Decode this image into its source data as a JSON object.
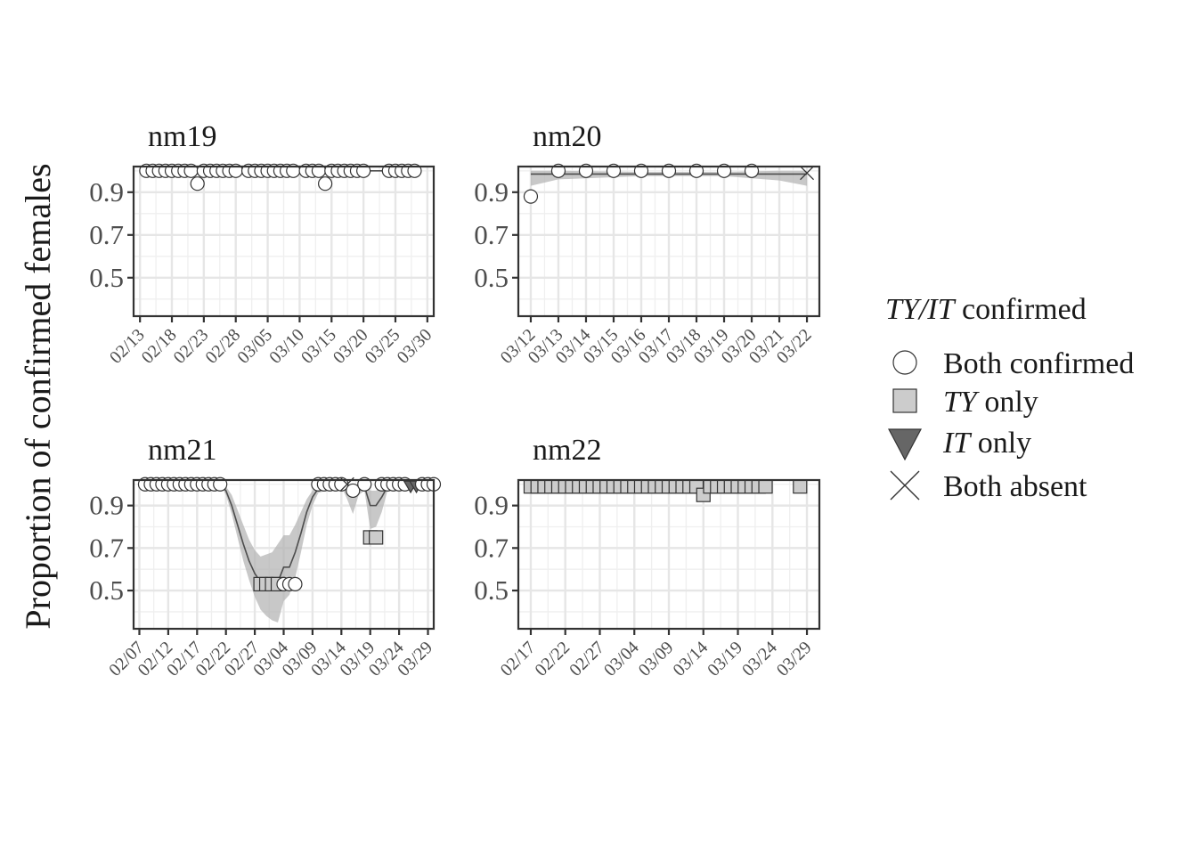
{
  "y_axis_label": "Proportion of confirmed females",
  "legend": {
    "title_italic": "TY/IT",
    "title_rest": " confirmed",
    "items": [
      {
        "key": "both",
        "italic": "",
        "rest": "Both confirmed",
        "shape": "circle",
        "fill": "#ffffff"
      },
      {
        "key": "ty",
        "italic": "TY",
        "rest": " only",
        "shape": "square",
        "fill": "#cccccc"
      },
      {
        "key": "it",
        "italic": "IT",
        "rest": " only",
        "shape": "triangle-down",
        "fill": "#666666"
      },
      {
        "key": "none",
        "italic": "",
        "rest": "Both absent",
        "shape": "cross",
        "fill": "none"
      }
    ]
  },
  "colors": {
    "ribbon": "#b3b3b3",
    "line": "#4d4d4d",
    "grid": "#e6e6e6",
    "frame": "#333333"
  },
  "chart_data": [
    {
      "type": "line",
      "panel": "nm19",
      "title": "nm19",
      "x_start": "02/13",
      "x_tick_labels": [
        "02/13",
        "02/18",
        "02/23",
        "02/28",
        "03/05",
        "03/10",
        "03/15",
        "03/20",
        "03/25",
        "03/30"
      ],
      "x_tick_days": [
        0,
        5,
        10,
        15,
        20,
        25,
        30,
        35,
        40,
        45
      ],
      "xlim_days": [
        -1,
        46
      ],
      "ylim": [
        0.32,
        1.02
      ],
      "y_ticks": [
        0.5,
        0.7,
        0.9
      ],
      "points": [
        {
          "x": "02/14",
          "y": 1.0,
          "cat": "both"
        },
        {
          "x": "02/15",
          "y": 1.0,
          "cat": "both"
        },
        {
          "x": "02/16",
          "y": 1.0,
          "cat": "both"
        },
        {
          "x": "02/17",
          "y": 1.0,
          "cat": "both"
        },
        {
          "x": "02/18",
          "y": 1.0,
          "cat": "both"
        },
        {
          "x": "02/19",
          "y": 1.0,
          "cat": "both"
        },
        {
          "x": "02/20",
          "y": 1.0,
          "cat": "both"
        },
        {
          "x": "02/21",
          "y": 1.0,
          "cat": "both"
        },
        {
          "x": "02/22",
          "y": 0.94,
          "cat": "both"
        },
        {
          "x": "02/23",
          "y": 1.0,
          "cat": "both"
        },
        {
          "x": "02/24",
          "y": 1.0,
          "cat": "both"
        },
        {
          "x": "02/25",
          "y": 1.0,
          "cat": "both"
        },
        {
          "x": "02/26",
          "y": 1.0,
          "cat": "both"
        },
        {
          "x": "02/27",
          "y": 1.0,
          "cat": "both"
        },
        {
          "x": "02/28",
          "y": 1.0,
          "cat": "both"
        },
        {
          "x": "03/02",
          "y": 1.0,
          "cat": "both"
        },
        {
          "x": "03/03",
          "y": 1.0,
          "cat": "both"
        },
        {
          "x": "03/04",
          "y": 1.0,
          "cat": "both"
        },
        {
          "x": "03/05",
          "y": 1.0,
          "cat": "both"
        },
        {
          "x": "03/06",
          "y": 1.0,
          "cat": "both"
        },
        {
          "x": "03/07",
          "y": 1.0,
          "cat": "both"
        },
        {
          "x": "03/08",
          "y": 1.0,
          "cat": "both"
        },
        {
          "x": "03/09",
          "y": 1.0,
          "cat": "both"
        },
        {
          "x": "03/11",
          "y": 1.0,
          "cat": "both"
        },
        {
          "x": "03/12",
          "y": 1.0,
          "cat": "both"
        },
        {
          "x": "03/13",
          "y": 1.0,
          "cat": "both"
        },
        {
          "x": "03/14",
          "y": 0.94,
          "cat": "both"
        },
        {
          "x": "03/15",
          "y": 1.0,
          "cat": "both"
        },
        {
          "x": "03/16",
          "y": 1.0,
          "cat": "both"
        },
        {
          "x": "03/17",
          "y": 1.0,
          "cat": "both"
        },
        {
          "x": "03/18",
          "y": 1.0,
          "cat": "both"
        },
        {
          "x": "03/19",
          "y": 1.0,
          "cat": "both"
        },
        {
          "x": "03/20",
          "y": 1.0,
          "cat": "both"
        },
        {
          "x": "03/24",
          "y": 1.0,
          "cat": "both"
        },
        {
          "x": "03/25",
          "y": 1.0,
          "cat": "both"
        },
        {
          "x": "03/26",
          "y": 1.0,
          "cat": "both"
        },
        {
          "x": "03/27",
          "y": 1.0,
          "cat": "both"
        },
        {
          "x": "03/28",
          "y": 1.0,
          "cat": "both"
        }
      ],
      "trend": {
        "x": [
          "02/14",
          "02/22",
          "02/23",
          "03/14",
          "03/15",
          "03/28"
        ],
        "y": [
          1.0,
          0.995,
          1.0,
          0.995,
          1.0,
          1.0
        ]
      },
      "ribbon": []
    },
    {
      "type": "line",
      "panel": "nm20",
      "title": "nm20",
      "x_start": "03/12",
      "x_tick_labels": [
        "03/12",
        "03/13",
        "03/14",
        "03/15",
        "03/16",
        "03/17",
        "03/18",
        "03/19",
        "03/20",
        "03/21",
        "03/22"
      ],
      "x_tick_days": [
        0,
        1,
        2,
        3,
        4,
        5,
        6,
        7,
        8,
        9,
        10
      ],
      "xlim_days": [
        -0.45,
        10.45
      ],
      "ylim": [
        0.32,
        1.02
      ],
      "y_ticks": [
        0.5,
        0.7,
        0.9
      ],
      "points": [
        {
          "x": "03/12",
          "y": 0.88,
          "cat": "both"
        },
        {
          "x": "03/13",
          "y": 1.0,
          "cat": "both"
        },
        {
          "x": "03/14",
          "y": 1.0,
          "cat": "both"
        },
        {
          "x": "03/15",
          "y": 1.0,
          "cat": "both"
        },
        {
          "x": "03/16",
          "y": 1.0,
          "cat": "both"
        },
        {
          "x": "03/17",
          "y": 1.0,
          "cat": "both"
        },
        {
          "x": "03/18",
          "y": 1.0,
          "cat": "both"
        },
        {
          "x": "03/19",
          "y": 1.0,
          "cat": "both"
        },
        {
          "x": "03/20",
          "y": 1.0,
          "cat": "both"
        },
        {
          "x": "03/22",
          "y": 0.99,
          "cat": "none"
        }
      ],
      "trend": {
        "x": [
          "03/12",
          "03/16",
          "03/22"
        ],
        "y": [
          0.985,
          0.985,
          0.985
        ]
      },
      "ribbon": [
        {
          "x": "03/12",
          "lo": 0.93,
          "hi": 1.0
        },
        {
          "x": "03/13",
          "lo": 0.96,
          "hi": 1.0
        },
        {
          "x": "03/16",
          "lo": 0.975,
          "hi": 0.995
        },
        {
          "x": "03/19",
          "lo": 0.975,
          "hi": 0.995
        },
        {
          "x": "03/21",
          "lo": 0.955,
          "hi": 1.0
        },
        {
          "x": "03/22",
          "lo": 0.93,
          "hi": 1.0
        }
      ]
    },
    {
      "type": "line",
      "panel": "nm21",
      "title": "nm21",
      "x_start": "02/07",
      "x_tick_labels": [
        "02/07",
        "02/12",
        "02/17",
        "02/22",
        "02/27",
        "03/04",
        "03/09",
        "03/14",
        "03/19",
        "03/24",
        "03/29"
      ],
      "x_tick_days": [
        0,
        5,
        10,
        15,
        20,
        25,
        30,
        35,
        40,
        45,
        50
      ],
      "xlim_days": [
        -1,
        51
      ],
      "ylim": [
        0.32,
        1.02
      ],
      "y_ticks": [
        0.5,
        0.7,
        0.9
      ],
      "points": [
        {
          "x": "02/08",
          "y": 1.0,
          "cat": "both"
        },
        {
          "x": "02/09",
          "y": 1.0,
          "cat": "both"
        },
        {
          "x": "02/10",
          "y": 1.0,
          "cat": "both"
        },
        {
          "x": "02/11",
          "y": 1.0,
          "cat": "both"
        },
        {
          "x": "02/12",
          "y": 1.0,
          "cat": "both"
        },
        {
          "x": "02/13",
          "y": 1.0,
          "cat": "both"
        },
        {
          "x": "02/14",
          "y": 1.0,
          "cat": "both"
        },
        {
          "x": "02/15",
          "y": 1.0,
          "cat": "both"
        },
        {
          "x": "02/16",
          "y": 1.0,
          "cat": "both"
        },
        {
          "x": "02/17",
          "y": 1.0,
          "cat": "both"
        },
        {
          "x": "02/18",
          "y": 1.0,
          "cat": "both"
        },
        {
          "x": "02/19",
          "y": 1.0,
          "cat": "both"
        },
        {
          "x": "02/20",
          "y": 1.0,
          "cat": "both"
        },
        {
          "x": "02/21",
          "y": 1.0,
          "cat": "both"
        },
        {
          "x": "02/28",
          "y": 0.53,
          "cat": "ty"
        },
        {
          "x": "03/01",
          "y": 0.53,
          "cat": "ty"
        },
        {
          "x": "03/02",
          "y": 0.53,
          "cat": "ty"
        },
        {
          "x": "03/03",
          "y": 0.53,
          "cat": "ty"
        },
        {
          "x": "03/04",
          "y": 0.53,
          "cat": "both"
        },
        {
          "x": "03/05",
          "y": 0.53,
          "cat": "both"
        },
        {
          "x": "03/06",
          "y": 0.53,
          "cat": "both"
        },
        {
          "x": "03/10",
          "y": 1.0,
          "cat": "both"
        },
        {
          "x": "03/11",
          "y": 1.0,
          "cat": "both"
        },
        {
          "x": "03/12",
          "y": 1.0,
          "cat": "both"
        },
        {
          "x": "03/13",
          "y": 1.0,
          "cat": "both"
        },
        {
          "x": "03/14",
          "y": 1.0,
          "cat": "both"
        },
        {
          "x": "03/15",
          "y": 1.0,
          "cat": "none"
        },
        {
          "x": "03/16",
          "y": 0.97,
          "cat": "both"
        },
        {
          "x": "03/18",
          "y": 1.0,
          "cat": "both"
        },
        {
          "x": "03/19",
          "y": 0.75,
          "cat": "ty"
        },
        {
          "x": "03/20",
          "y": 0.75,
          "cat": "ty"
        },
        {
          "x": "03/21",
          "y": 1.0,
          "cat": "both"
        },
        {
          "x": "03/22",
          "y": 1.0,
          "cat": "both"
        },
        {
          "x": "03/23",
          "y": 1.0,
          "cat": "both"
        },
        {
          "x": "03/24",
          "y": 1.0,
          "cat": "both"
        },
        {
          "x": "03/25",
          "y": 1.0,
          "cat": "both"
        },
        {
          "x": "03/26",
          "y": 0.99,
          "cat": "it"
        },
        {
          "x": "03/27",
          "y": 0.99,
          "cat": "it"
        },
        {
          "x": "03/28",
          "y": 1.0,
          "cat": "both"
        },
        {
          "x": "03/29",
          "y": 1.0,
          "cat": "both"
        },
        {
          "x": "03/30",
          "y": 1.0,
          "cat": "both"
        }
      ],
      "trend": {
        "x": [
          "02/08",
          "02/21",
          "02/22",
          "02/23",
          "02/24",
          "02/25",
          "02/26",
          "02/27",
          "02/28",
          "03/01",
          "03/02",
          "03/03",
          "03/04",
          "03/05",
          "03/06",
          "03/07",
          "03/08",
          "03/09",
          "03/10",
          "03/14",
          "03/15",
          "03/16",
          "03/17",
          "03/18",
          "03/19",
          "03/20",
          "03/21",
          "03/22",
          "03/30"
        ],
        "y": [
          1.0,
          1.0,
          0.97,
          0.9,
          0.81,
          0.72,
          0.64,
          0.58,
          0.54,
          0.54,
          0.54,
          0.54,
          0.61,
          0.61,
          0.68,
          0.77,
          0.87,
          0.94,
          0.98,
          0.995,
          0.975,
          0.97,
          0.985,
          0.99,
          0.9,
          0.9,
          0.94,
          0.99,
          1.0
        ]
      },
      "ribbon": [
        {
          "x": "02/21",
          "lo": 1.0,
          "hi": 1.0
        },
        {
          "x": "02/22",
          "lo": 0.95,
          "hi": 0.99
        },
        {
          "x": "02/23",
          "lo": 0.86,
          "hi": 0.95
        },
        {
          "x": "02/24",
          "lo": 0.75,
          "hi": 0.88
        },
        {
          "x": "02/25",
          "lo": 0.64,
          "hi": 0.81
        },
        {
          "x": "02/26",
          "lo": 0.55,
          "hi": 0.74
        },
        {
          "x": "02/27",
          "lo": 0.47,
          "hi": 0.69
        },
        {
          "x": "02/28",
          "lo": 0.41,
          "hi": 0.66
        },
        {
          "x": "03/01",
          "lo": 0.38,
          "hi": 0.67
        },
        {
          "x": "03/02",
          "lo": 0.36,
          "hi": 0.68
        },
        {
          "x": "03/03",
          "lo": 0.35,
          "hi": 0.72
        },
        {
          "x": "03/04",
          "lo": 0.45,
          "hi": 0.76
        },
        {
          "x": "03/05",
          "lo": 0.48,
          "hi": 0.76
        },
        {
          "x": "03/06",
          "lo": 0.56,
          "hi": 0.81
        },
        {
          "x": "03/07",
          "lo": 0.68,
          "hi": 0.87
        },
        {
          "x": "03/08",
          "lo": 0.81,
          "hi": 0.93
        },
        {
          "x": "03/09",
          "lo": 0.9,
          "hi": 0.97
        },
        {
          "x": "03/10",
          "lo": 0.96,
          "hi": 0.99
        },
        {
          "x": "03/14",
          "lo": 0.99,
          "hi": 1.0
        },
        {
          "x": "03/15",
          "lo": 0.93,
          "hi": 1.0
        },
        {
          "x": "03/16",
          "lo": 0.86,
          "hi": 0.99
        },
        {
          "x": "03/17",
          "lo": 0.95,
          "hi": 1.0
        },
        {
          "x": "03/18",
          "lo": 0.97,
          "hi": 1.0
        },
        {
          "x": "03/19",
          "lo": 0.79,
          "hi": 0.97
        },
        {
          "x": "03/20",
          "lo": 0.8,
          "hi": 0.97
        },
        {
          "x": "03/21",
          "lo": 0.87,
          "hi": 0.99
        },
        {
          "x": "03/22",
          "lo": 0.97,
          "hi": 1.0
        },
        {
          "x": "03/30",
          "lo": 1.0,
          "hi": 1.0
        }
      ]
    },
    {
      "type": "line",
      "panel": "nm22",
      "title": "nm22",
      "x_start": "02/17",
      "x_tick_labels": [
        "02/17",
        "02/22",
        "02/27",
        "03/04",
        "03/09",
        "03/14",
        "03/19",
        "03/24",
        "03/29"
      ],
      "x_tick_days": [
        0,
        5,
        10,
        15,
        20,
        25,
        30,
        35,
        40
      ],
      "xlim_days": [
        -1.8,
        41.8
      ],
      "ylim": [
        0.32,
        1.02
      ],
      "y_ticks": [
        0.5,
        0.7,
        0.9
      ],
      "points": [
        {
          "x": "02/17",
          "y": 0.99,
          "cat": "ty"
        },
        {
          "x": "02/18",
          "y": 0.99,
          "cat": "ty"
        },
        {
          "x": "02/19",
          "y": 0.99,
          "cat": "ty"
        },
        {
          "x": "02/20",
          "y": 0.99,
          "cat": "ty"
        },
        {
          "x": "02/21",
          "y": 0.99,
          "cat": "ty"
        },
        {
          "x": "02/22",
          "y": 0.99,
          "cat": "ty"
        },
        {
          "x": "02/23",
          "y": 0.99,
          "cat": "ty"
        },
        {
          "x": "02/24",
          "y": 0.99,
          "cat": "ty"
        },
        {
          "x": "02/25",
          "y": 0.99,
          "cat": "ty"
        },
        {
          "x": "02/26",
          "y": 0.99,
          "cat": "ty"
        },
        {
          "x": "02/27",
          "y": 0.99,
          "cat": "ty"
        },
        {
          "x": "02/28",
          "y": 0.99,
          "cat": "ty"
        },
        {
          "x": "03/01",
          "y": 0.99,
          "cat": "ty"
        },
        {
          "x": "03/02",
          "y": 0.99,
          "cat": "ty"
        },
        {
          "x": "03/03",
          "y": 0.99,
          "cat": "ty"
        },
        {
          "x": "03/04",
          "y": 0.99,
          "cat": "ty"
        },
        {
          "x": "03/05",
          "y": 0.99,
          "cat": "ty"
        },
        {
          "x": "03/06",
          "y": 0.99,
          "cat": "ty"
        },
        {
          "x": "03/07",
          "y": 0.99,
          "cat": "ty"
        },
        {
          "x": "03/08",
          "y": 0.99,
          "cat": "ty"
        },
        {
          "x": "03/09",
          "y": 0.99,
          "cat": "ty"
        },
        {
          "x": "03/10",
          "y": 0.99,
          "cat": "ty"
        },
        {
          "x": "03/11",
          "y": 0.99,
          "cat": "ty"
        },
        {
          "x": "03/12",
          "y": 0.99,
          "cat": "ty"
        },
        {
          "x": "03/13",
          "y": 0.99,
          "cat": "ty"
        },
        {
          "x": "03/14",
          "y": 0.95,
          "cat": "ty"
        },
        {
          "x": "03/15",
          "y": 0.99,
          "cat": "ty"
        },
        {
          "x": "03/16",
          "y": 0.99,
          "cat": "ty"
        },
        {
          "x": "03/17",
          "y": 0.99,
          "cat": "ty"
        },
        {
          "x": "03/18",
          "y": 0.99,
          "cat": "ty"
        },
        {
          "x": "03/19",
          "y": 0.99,
          "cat": "ty"
        },
        {
          "x": "03/20",
          "y": 0.99,
          "cat": "ty"
        },
        {
          "x": "03/21",
          "y": 0.99,
          "cat": "ty"
        },
        {
          "x": "03/22",
          "y": 0.99,
          "cat": "ty"
        },
        {
          "x": "03/23",
          "y": 0.99,
          "cat": "ty"
        },
        {
          "x": "03/28",
          "y": 0.99,
          "cat": "ty"
        }
      ],
      "trend": {
        "x": [],
        "y": []
      },
      "ribbon": []
    }
  ]
}
